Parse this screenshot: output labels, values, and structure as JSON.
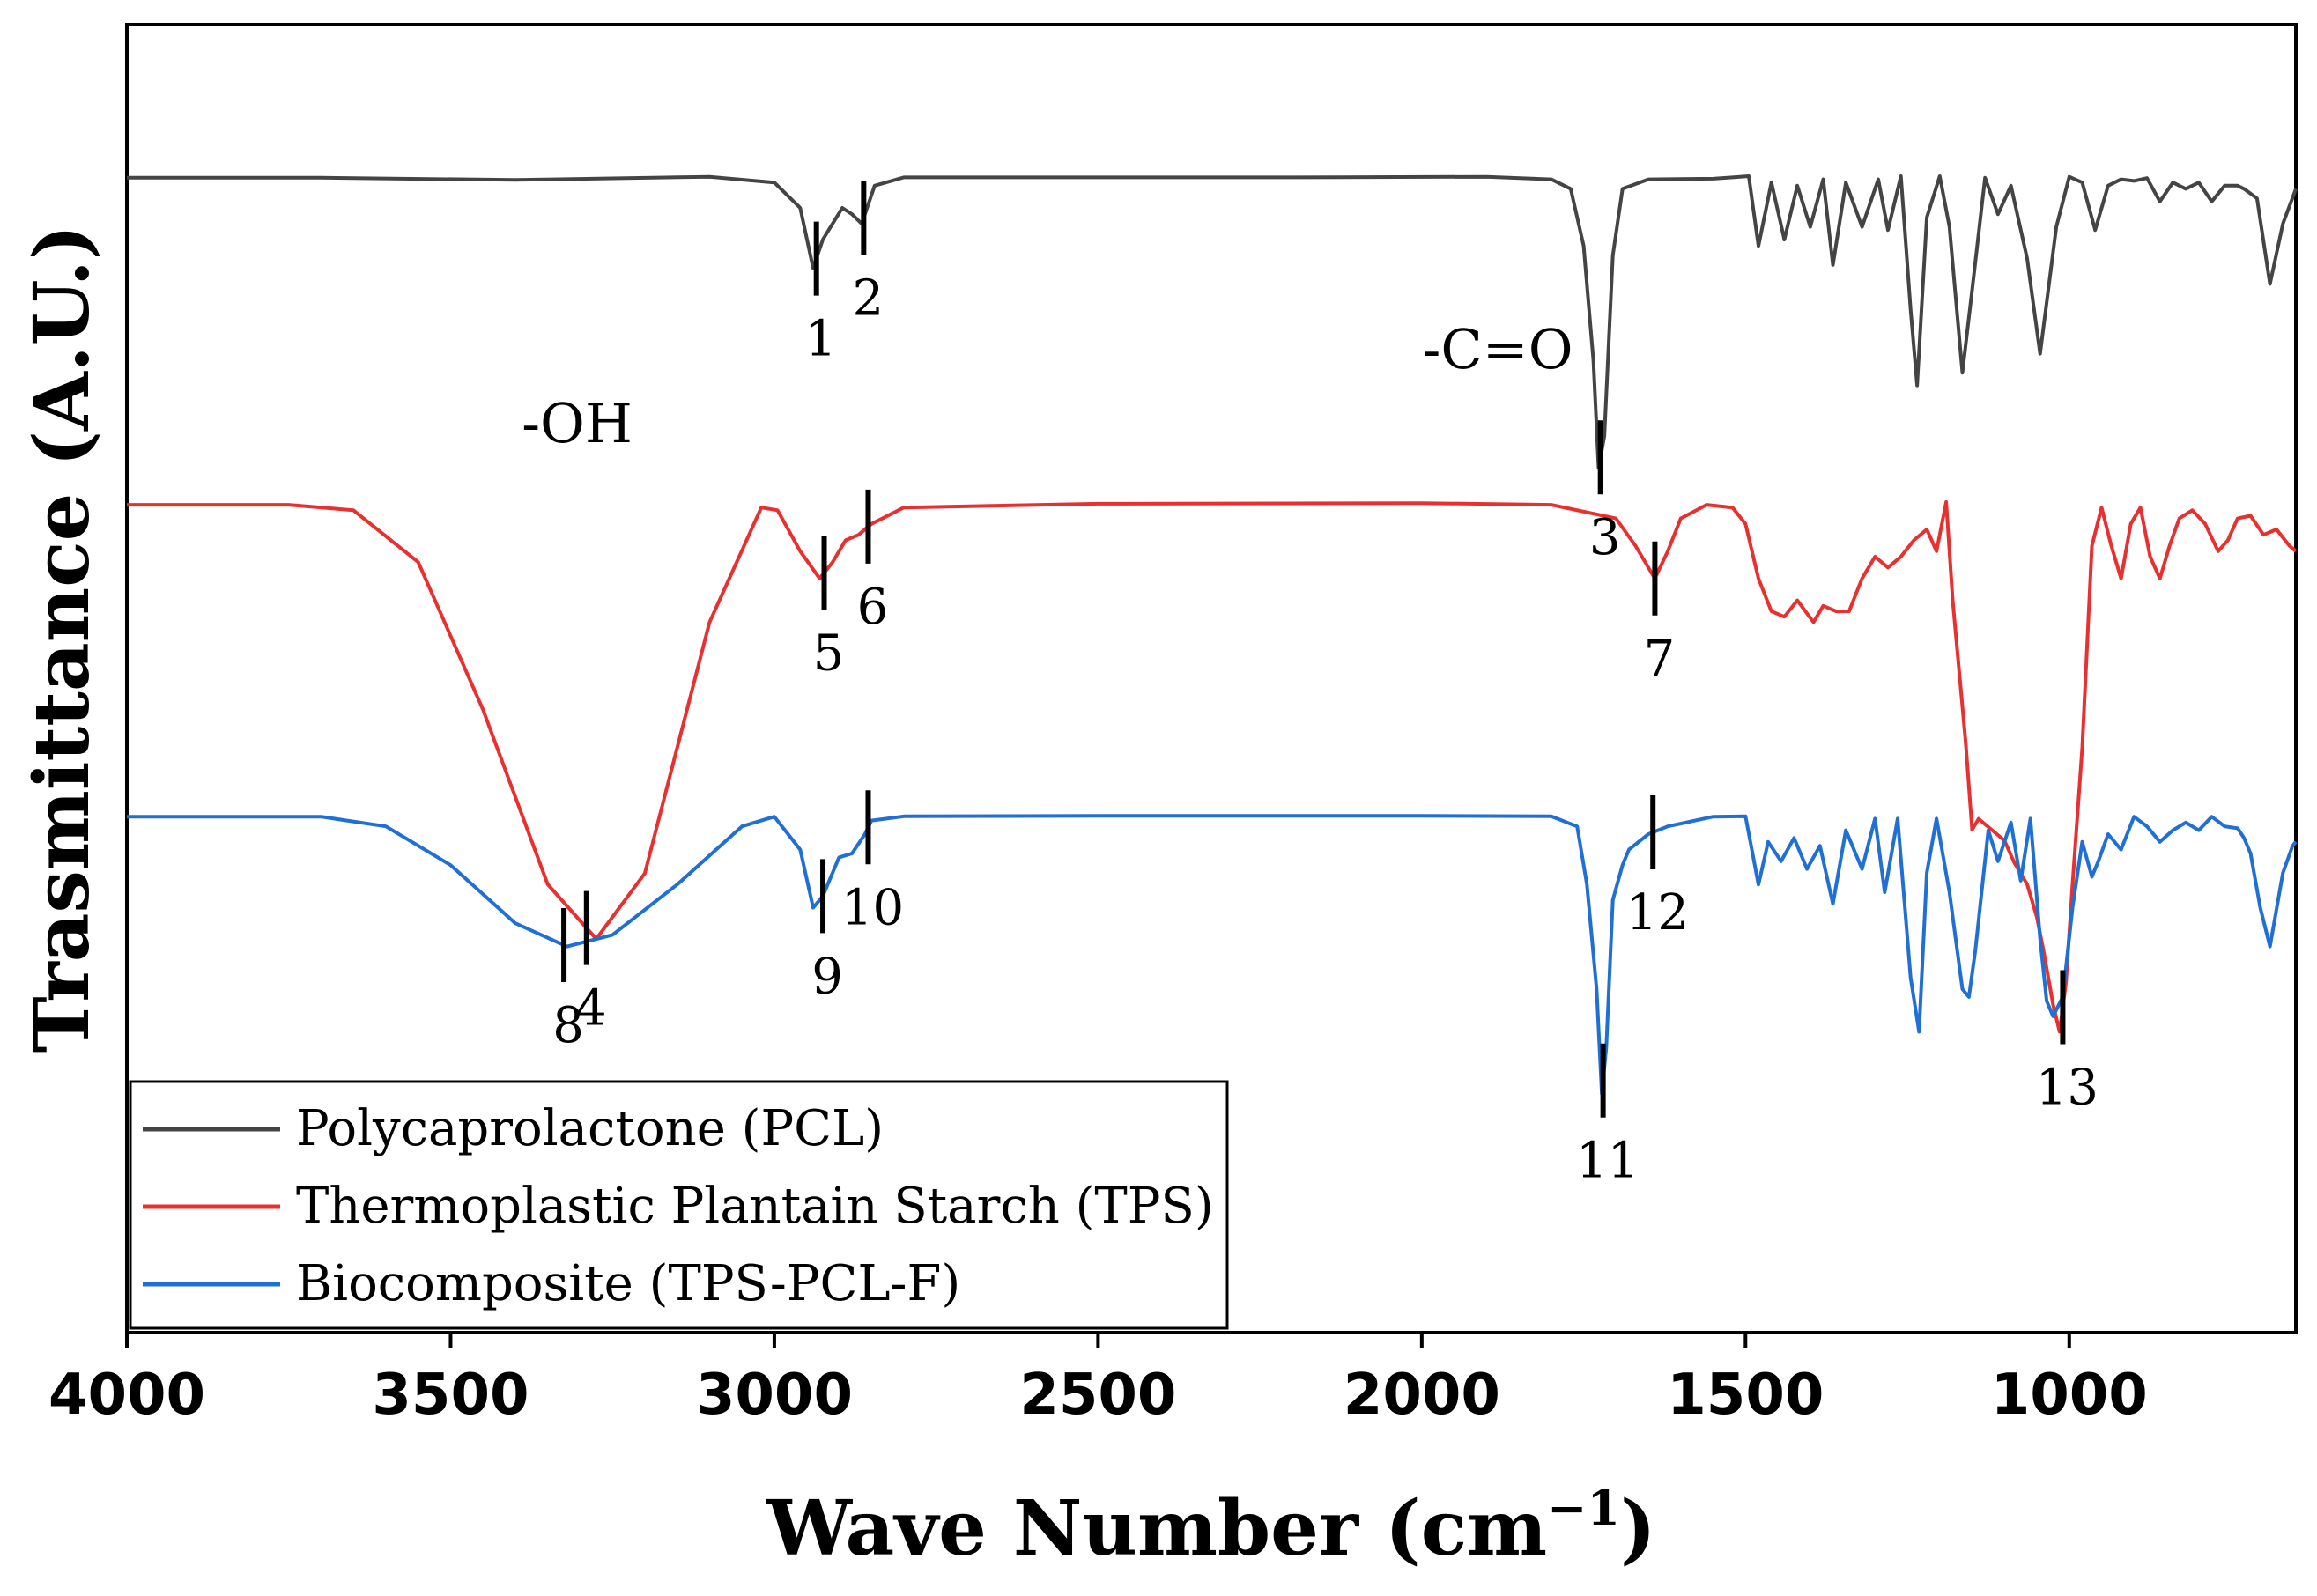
{
  "chart_data": {
    "type": "line",
    "title": "",
    "xlabel": "Wave Number (cm",
    "xlabel_superscript": "−1",
    "xlabel_close": ")",
    "ylabel": "Trasmittance (A.U.)",
    "xlim": [
      4000,
      650
    ],
    "x_reversed": true,
    "y_ticks_shown": false,
    "grid": false,
    "legend_position": "bottom-left",
    "xticks": [
      4000,
      3500,
      3000,
      2500,
      2000,
      1500,
      1000
    ],
    "series": [
      {
        "name": "Polycaprolactone (PCL)",
        "color": "#444444",
        "x": [
          4000,
          3700,
          3400,
          3100,
          3000,
          2960,
          2940,
          2925,
          2895,
          2880,
          2865,
          2845,
          2800,
          2500,
          2200,
          1900,
          1800,
          1770,
          1750,
          1735,
          1727,
          1718,
          1705,
          1690,
          1650,
          1550,
          1520,
          1495,
          1480,
          1460,
          1440,
          1420,
          1400,
          1380,
          1365,
          1345,
          1320,
          1295,
          1280,
          1260,
          1245,
          1235,
          1220,
          1200,
          1185,
          1165,
          1150,
          1130,
          1110,
          1090,
          1065,
          1045,
          1020,
          1000,
          980,
          960,
          940,
          920,
          900,
          880,
          860,
          840,
          820,
          800,
          780,
          760,
          740,
          730,
          710,
          690,
          670,
          650
        ],
        "y": [
          99.5,
          99.5,
          98.8,
          99.8,
          98,
          90,
          71,
          80,
          90,
          88,
          85,
          97,
          99.6,
          99.6,
          99.6,
          99.8,
          99,
          96,
          78,
          42,
          8,
          18,
          75,
          96,
          99,
          99.2,
          99.6,
          100,
          78,
          98,
          80,
          97,
          84,
          99,
          72,
          98,
          84,
          99,
          83,
          100,
          58,
          34,
          87,
          100,
          84,
          38,
          64,
          99.5,
          88,
          97,
          74,
          44,
          84,
          99.8,
          98,
          83,
          97,
          99,
          98.5,
          99.4,
          92,
          98,
          96,
          98,
          92,
          97,
          97,
          96,
          93,
          66,
          85,
          96
        ]
      },
      {
        "name": "Thermoplastic Plantain Starch (TPS)",
        "color": "#e83030",
        "x": [
          4000,
          3750,
          3650,
          3550,
          3450,
          3350,
          3275,
          3200,
          3100,
          3020,
          2995,
          2960,
          2930,
          2910,
          2890,
          2870,
          2850,
          2800,
          2500,
          2000,
          1800,
          1700,
          1670,
          1650,
          1640,
          1620,
          1600,
          1560,
          1520,
          1500,
          1480,
          1460,
          1440,
          1420,
          1395,
          1380,
          1360,
          1340,
          1320,
          1300,
          1280,
          1260,
          1240,
          1220,
          1205,
          1190,
          1180,
          1160,
          1150,
          1140,
          1120,
          1100,
          1085,
          1065,
          1050,
          1040,
          1025,
          1015,
          1005,
          995,
          980,
          965,
          950,
          935,
          920,
          905,
          890,
          875,
          860,
          845,
          830,
          810,
          790,
          770,
          755,
          740,
          720,
          700,
          680,
          660,
          650
        ],
        "y": [
          99.5,
          99.5,
          98.5,
          89,
          62,
          30,
          20,
          32,
          78,
          99,
          98.5,
          91,
          86,
          89,
          93,
          94,
          96,
          99,
          99.7,
          99.8,
          99.5,
          97,
          92,
          88,
          86,
          91,
          97,
          99.5,
          99,
          96,
          86,
          80,
          79,
          82,
          78,
          81,
          80,
          80,
          86,
          90,
          88,
          90,
          93,
          95,
          91,
          100,
          82,
          56,
          40,
          42,
          40,
          38,
          34,
          30,
          24,
          18,
          8,
          3,
          12,
          30,
          55,
          92,
          99,
          92,
          86,
          96,
          99,
          90,
          86,
          92,
          97,
          98.5,
          96,
          91,
          93,
          97,
          97.5,
          94,
          95,
          92,
          91
        ]
      },
      {
        "name": "Biocomposite (TPS-PCL-F)",
        "color": "#1f6fd4",
        "x": [
          4000,
          3700,
          3600,
          3500,
          3400,
          3320,
          3250,
          3150,
          3050,
          3000,
          2960,
          2940,
          2925,
          2900,
          2880,
          2860,
          2850,
          2800,
          2500,
          2000,
          1800,
          1760,
          1745,
          1730,
          1722,
          1715,
          1705,
          1690,
          1680,
          1650,
          1620,
          1550,
          1500,
          1480,
          1465,
          1445,
          1425,
          1405,
          1385,
          1365,
          1345,
          1320,
          1300,
          1285,
          1265,
          1245,
          1232,
          1220,
          1205,
          1185,
          1165,
          1155,
          1145,
          1125,
          1110,
          1090,
          1075,
          1060,
          1045,
          1035,
          1025,
          1010,
          995,
          980,
          965,
          955,
          940,
          920,
          900,
          880,
          860,
          840,
          820,
          800,
          780,
          760,
          740,
          730,
          720,
          705,
          690,
          670,
          655,
          650
        ],
        "y": [
          99.5,
          99.5,
          97,
          87,
          72,
          66,
          69,
          82,
          97,
          99.5,
          91,
          76,
          79,
          89,
          90,
          95,
          98.5,
          99.6,
          99.7,
          99.7,
          99.6,
          97,
          82,
          55,
          28,
          40,
          78,
          87,
          91,
          95,
          97,
          99.5,
          99.6,
          82,
          93,
          88,
          94,
          86,
          92,
          77,
          96,
          86,
          99,
          80,
          99,
          58,
          44,
          85,
          99,
          80,
          55,
          53,
          65,
          96,
          88,
          98,
          83,
          99,
          68,
          52,
          48,
          53,
          76,
          93,
          84,
          88,
          95,
          91,
          99.5,
          97,
          93,
          96,
          98,
          96,
          99.5,
          97,
          96.5,
          94,
          90,
          76,
          66,
          85,
          92,
          93
        ]
      }
    ],
    "annotations": [
      {
        "series": 0,
        "label": "1",
        "x": 2935
      },
      {
        "series": 0,
        "label": "2",
        "x": 2862
      },
      {
        "series": 0,
        "label": "3",
        "x": 1724
      },
      {
        "series": 1,
        "label": "4",
        "x": 3290
      },
      {
        "series": 1,
        "label": "5",
        "x": 2923
      },
      {
        "series": 1,
        "label": "6",
        "x": 2855
      },
      {
        "series": 1,
        "label": "7",
        "x": 1640
      },
      {
        "series": 1,
        "label": "13",
        "x": 1010
      },
      {
        "series": 2,
        "label": "8",
        "x": 3325
      },
      {
        "series": 2,
        "label": "9",
        "x": 2925
      },
      {
        "series": 2,
        "label": "10",
        "x": 2855
      },
      {
        "series": 2,
        "label": "11",
        "x": 1720
      },
      {
        "series": 2,
        "label": "12",
        "x": 1643
      }
    ],
    "group_labels": [
      "-OH",
      "-C=O"
    ]
  }
}
